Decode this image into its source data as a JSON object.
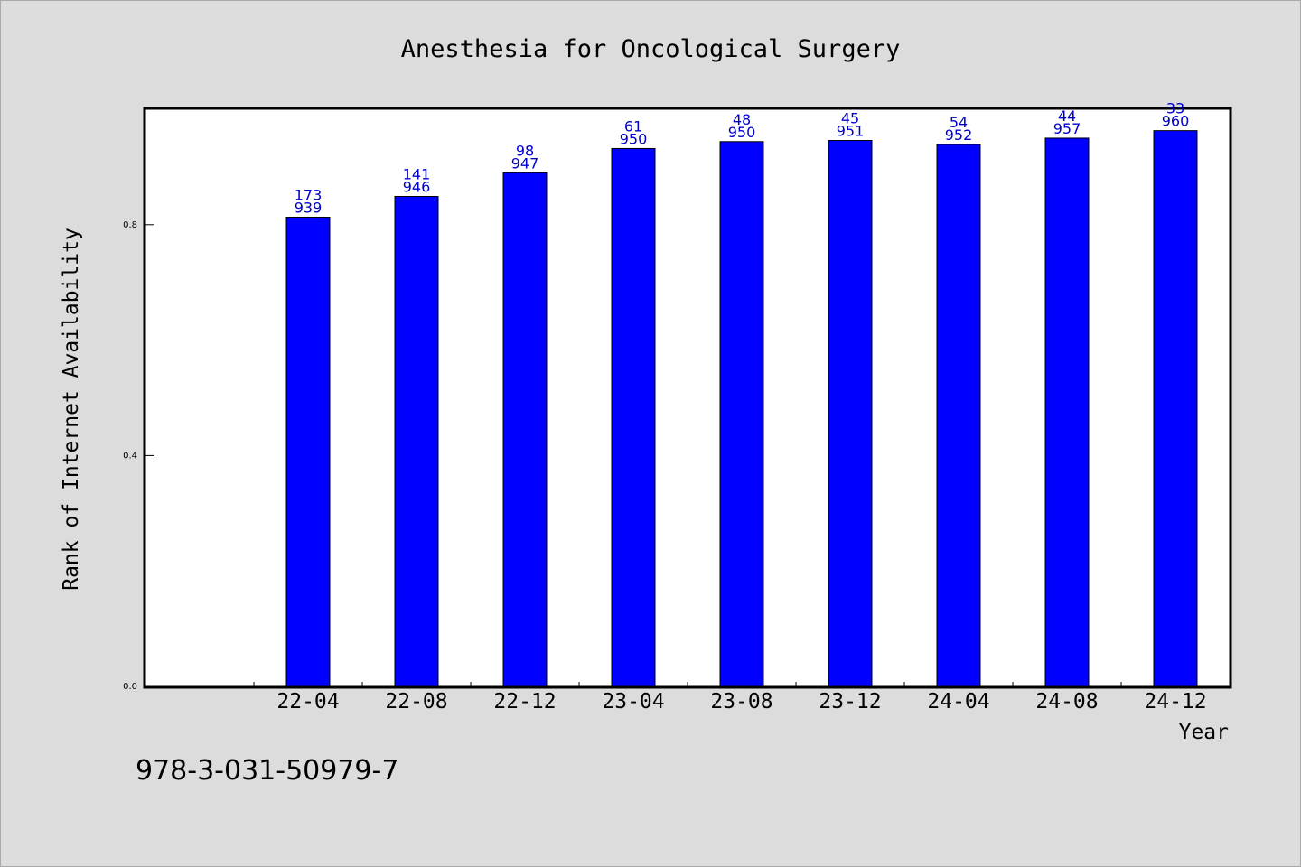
{
  "chart_data": {
    "type": "bar",
    "title": "Anesthesia for Oncological Surgery",
    "xlabel": "Year",
    "ylabel": "Rank of Internet Availability",
    "categories": [
      "22-04",
      "22-08",
      "22-12",
      "23-04",
      "23-08",
      "23-12",
      "24-04",
      "24-08",
      "24-12"
    ],
    "values": [
      0.813,
      0.849,
      0.89,
      0.932,
      0.944,
      0.946,
      0.939,
      0.95,
      0.963
    ],
    "bar_labels_top": [
      "173",
      "141",
      "98",
      "61",
      "48",
      "45",
      "54",
      "44",
      "33"
    ],
    "bar_labels_bottom": [
      "939",
      "946",
      "947",
      "950",
      "950",
      "951",
      "952",
      "957",
      "960"
    ],
    "ylim": [
      0,
      1.0
    ],
    "y_ticks": [
      "0.0",
      "0.4",
      "0.8"
    ],
    "bar_color": "#0000ff",
    "label_color": "#0000cc",
    "grid": false
  },
  "footer": {
    "isbn": "978-3-031-50979-7"
  }
}
